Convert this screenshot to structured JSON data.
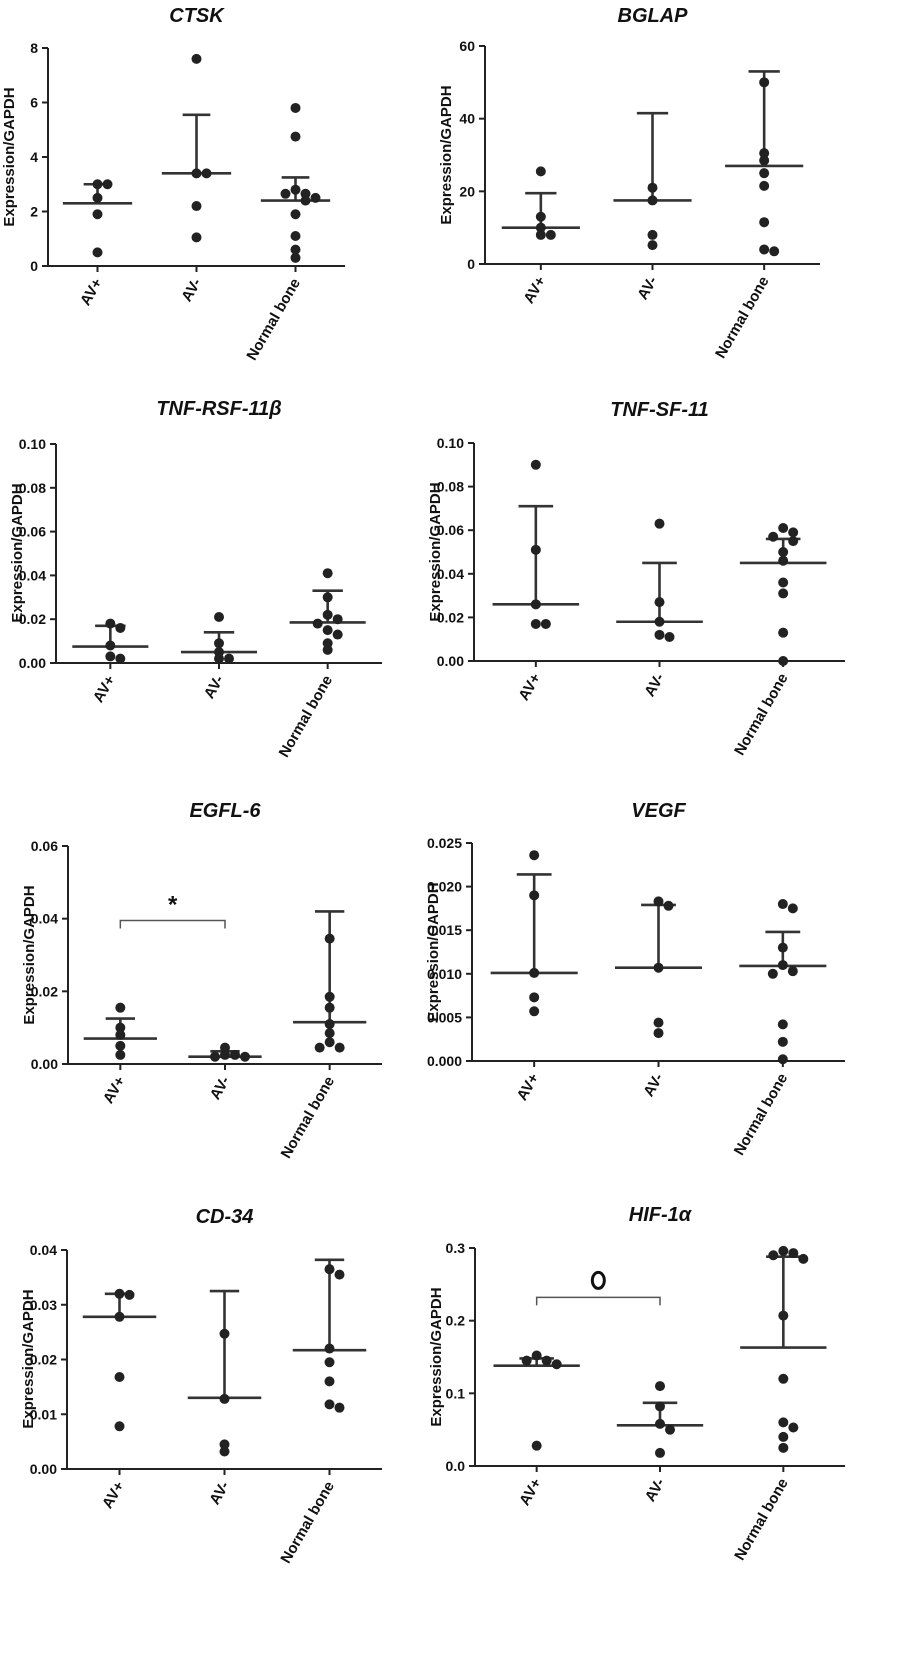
{
  "chart_data": [
    {
      "type": "scatter",
      "title": "CTSK",
      "ylabel": "Expression/GAPDH",
      "categories": [
        "AV+",
        "AV-",
        "Normal bone"
      ],
      "ylim": [
        0,
        8
      ],
      "yticks": [
        "0",
        "2",
        "4",
        "6",
        "8"
      ],
      "groups": [
        {
          "category": "AV+",
          "points": [
            3.0,
            3.0,
            2.5,
            1.9,
            0.5
          ],
          "median": 2.3,
          "bar_low": 2.3,
          "bar_high": 3.0
        },
        {
          "category": "AV-",
          "points": [
            7.6,
            3.4,
            3.4,
            2.2,
            1.05
          ],
          "median": 3.4,
          "bar_low": 3.4,
          "bar_high": 5.55
        },
        {
          "category": "Normal bone",
          "points": [
            5.8,
            4.75,
            2.8,
            2.65,
            2.65,
            2.5,
            2.4,
            1.9,
            1.1,
            0.6,
            0.3
          ],
          "median": 2.4,
          "bar_low": 2.4,
          "bar_high": 3.25
        }
      ],
      "significance": null
    },
    {
      "type": "scatter",
      "title": "BGLAP",
      "ylabel": "Expression/GAPDH",
      "categories": [
        "AV+",
        "AV-",
        "Normal bone"
      ],
      "ylim": [
        0,
        60
      ],
      "yticks": [
        "0",
        "20",
        "40",
        "60"
      ],
      "groups": [
        {
          "category": "AV+",
          "points": [
            25.5,
            13.0,
            10.0,
            8.0,
            8.0
          ],
          "median": 10.0,
          "bar_low": 10.0,
          "bar_high": 19.5
        },
        {
          "category": "AV-",
          "points": [
            21.0,
            17.5,
            8.0,
            5.2
          ],
          "median": 17.5,
          "bar_low": 17.5,
          "bar_high": 41.5
        },
        {
          "category": "Normal bone",
          "points": [
            50.0,
            30.5,
            28.5,
            25.0,
            21.5,
            11.5,
            4.0,
            3.5
          ],
          "median": 27.0,
          "bar_low": 27.0,
          "bar_high": 53.0
        }
      ],
      "significance": null
    },
    {
      "type": "scatter",
      "title": "TNF-RSF-11β",
      "ylabel": "Expression/GAPDH",
      "categories": [
        "AV+",
        "AV-",
        "Normal bone"
      ],
      "ylim": [
        0,
        0.1
      ],
      "yticks": [
        "0.00",
        "0.02",
        "0.04",
        "0.06",
        "0.08",
        "0.10"
      ],
      "groups": [
        {
          "category": "AV+",
          "points": [
            0.018,
            0.016,
            0.008,
            0.003,
            0.002
          ],
          "median": 0.0075,
          "bar_low": 0.0075,
          "bar_high": 0.017
        },
        {
          "category": "AV-",
          "points": [
            0.021,
            0.009,
            0.005,
            0.002,
            0.002
          ],
          "median": 0.005,
          "bar_low": 0.005,
          "bar_high": 0.014
        },
        {
          "category": "Normal bone",
          "points": [
            0.041,
            0.03,
            0.022,
            0.02,
            0.018,
            0.015,
            0.013,
            0.009,
            0.006
          ],
          "median": 0.0185,
          "bar_low": 0.0185,
          "bar_high": 0.033
        }
      ],
      "significance": null
    },
    {
      "type": "scatter",
      "title": "TNF-SF-11",
      "ylabel": "Expression/GAPDH",
      "categories": [
        "AV+",
        "AV-",
        "Normal bone"
      ],
      "ylim": [
        0,
        0.1
      ],
      "yticks": [
        "0.00",
        "0.02",
        "0.04",
        "0.06",
        "0.08",
        "0.10"
      ],
      "groups": [
        {
          "category": "AV+",
          "points": [
            0.09,
            0.051,
            0.026,
            0.017,
            0.017
          ],
          "median": 0.026,
          "bar_low": 0.026,
          "bar_high": 0.071
        },
        {
          "category": "AV-",
          "points": [
            0.063,
            0.027,
            0.018,
            0.012,
            0.011
          ],
          "median": 0.018,
          "bar_low": 0.018,
          "bar_high": 0.045
        },
        {
          "category": "Normal bone",
          "points": [
            0.061,
            0.059,
            0.057,
            0.055,
            0.05,
            0.046,
            0.036,
            0.031,
            0.013,
            0.0
          ],
          "median": 0.045,
          "bar_low": 0.045,
          "bar_high": 0.056
        }
      ],
      "significance": null
    },
    {
      "type": "scatter",
      "title": "EGFL-6",
      "ylabel": "Expression/GAPDH",
      "categories": [
        "AV+",
        "AV-",
        "Normal bone"
      ],
      "ylim": [
        0,
        0.06
      ],
      "yticks": [
        "0.00",
        "0.02",
        "0.04",
        "0.06"
      ],
      "groups": [
        {
          "category": "AV+",
          "points": [
            0.0155,
            0.01,
            0.008,
            0.005,
            0.0025
          ],
          "median": 0.007,
          "bar_low": 0.007,
          "bar_high": 0.0125
        },
        {
          "category": "AV-",
          "points": [
            0.0045,
            0.0025,
            0.0025,
            0.002,
            0.002
          ],
          "median": 0.002,
          "bar_low": 0.002,
          "bar_high": 0.0035
        },
        {
          "category": "Normal bone",
          "points": [
            0.0345,
            0.0185,
            0.0155,
            0.011,
            0.0085,
            0.006,
            0.0045,
            0.0045
          ],
          "median": 0.0115,
          "bar_low": 0.0115,
          "bar_high": 0.042
        }
      ],
      "significance": {
        "symbol": "*",
        "from": "AV+",
        "to": "AV-",
        "y": 0.0395
      }
    },
    {
      "type": "scatter",
      "title": "VEGF",
      "ylabel": "Expression/GAPDH",
      "categories": [
        "AV+",
        "AV-",
        "Normal bone"
      ],
      "ylim": [
        0,
        0.025
      ],
      "yticks": [
        "0.000",
        "0.005",
        "0.010",
        "0.015",
        "0.020",
        "0.025"
      ],
      "groups": [
        {
          "category": "AV+",
          "points": [
            0.0236,
            0.019,
            0.0101,
            0.0073,
            0.0057
          ],
          "median": 0.0101,
          "bar_low": 0.0101,
          "bar_high": 0.0214
        },
        {
          "category": "AV-",
          "points": [
            0.0183,
            0.0178,
            0.0107,
            0.0044,
            0.0032
          ],
          "median": 0.0107,
          "bar_low": 0.0107,
          "bar_high": 0.0179
        },
        {
          "category": "Normal bone",
          "points": [
            0.018,
            0.0175,
            0.013,
            0.011,
            0.0103,
            0.01,
            0.0042,
            0.0022,
            0.0002
          ],
          "median": 0.0109,
          "bar_low": 0.0109,
          "bar_high": 0.0148
        }
      ],
      "significance": null
    },
    {
      "type": "scatter",
      "title": "CD-34",
      "ylabel": "Expression/GAPDH",
      "categories": [
        "AV+",
        "AV-",
        "Normal bone"
      ],
      "ylim": [
        0,
        0.04
      ],
      "yticks": [
        "0.00",
        "0.01",
        "0.02",
        "0.03",
        "0.04"
      ],
      "groups": [
        {
          "category": "AV+",
          "points": [
            0.032,
            0.0318,
            0.0278,
            0.0168,
            0.0078
          ],
          "median": 0.0278,
          "bar_low": 0.0278,
          "bar_high": 0.032
        },
        {
          "category": "AV-",
          "points": [
            0.0247,
            0.0128,
            0.0045,
            0.0032
          ],
          "median": 0.013,
          "bar_low": 0.013,
          "bar_high": 0.0325
        },
        {
          "category": "Normal bone",
          "points": [
            0.0365,
            0.0355,
            0.022,
            0.0195,
            0.016,
            0.0118,
            0.0112
          ],
          "median": 0.0217,
          "bar_low": 0.0217,
          "bar_high": 0.0382
        }
      ],
      "significance": null
    },
    {
      "type": "scatter",
      "title": "HIF-1α",
      "ylabel": "Expression/GAPDH",
      "categories": [
        "AV+",
        "AV-",
        "Normal bone"
      ],
      "ylim": [
        0,
        0.3
      ],
      "yticks": [
        "0.0",
        "0.1",
        "0.2",
        "0.3"
      ],
      "groups": [
        {
          "category": "AV+",
          "points": [
            0.152,
            0.145,
            0.145,
            0.14,
            0.028
          ],
          "median": 0.138,
          "bar_low": 0.138,
          "bar_high": 0.148
        },
        {
          "category": "AV-",
          "points": [
            0.11,
            0.082,
            0.058,
            0.05,
            0.018
          ],
          "median": 0.056,
          "bar_low": 0.056,
          "bar_high": 0.087
        },
        {
          "category": "Normal bone",
          "points": [
            0.296,
            0.293,
            0.29,
            0.285,
            0.207,
            0.12,
            0.06,
            0.053,
            0.04,
            0.025
          ],
          "median": 0.163,
          "bar_low": 0.163,
          "bar_high": 0.288
        }
      ],
      "significance": {
        "symbol": "o",
        "from": "AV+",
        "to": "AV-",
        "y": 0.232
      }
    }
  ]
}
